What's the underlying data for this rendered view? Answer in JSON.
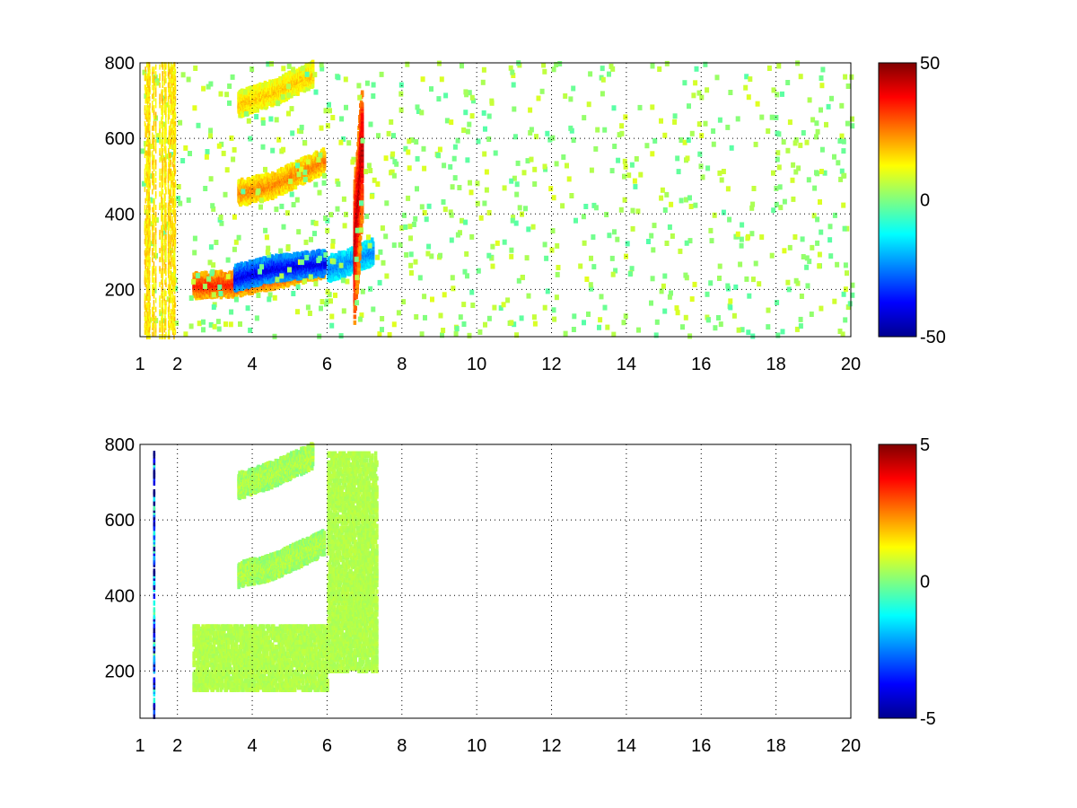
{
  "chart_data": [
    {
      "type": "heatmap",
      "title": "",
      "xlabel": "",
      "ylabel": "",
      "xlim": [
        1,
        20
      ],
      "ylim": [
        75,
        800
      ],
      "xticks": [
        1,
        2,
        4,
        6,
        8,
        10,
        12,
        14,
        16,
        18,
        20
      ],
      "xtick_labels": [
        "1",
        "2",
        "4",
        "6",
        "8",
        "10",
        "12",
        "14",
        "16",
        "18",
        "20"
      ],
      "yticks": [
        200,
        400,
        600,
        800
      ],
      "ytick_labels": [
        "200",
        "400",
        "600",
        "800"
      ],
      "grid": true,
      "colormap": "jet",
      "clim": [
        -50,
        50
      ],
      "colorbar_ticks": [
        -50,
        0,
        50
      ],
      "colorbar_labels": [
        "-50",
        "0",
        "50"
      ],
      "features": [
        {
          "kind": "band",
          "x": [
            2.4,
            3.5,
            5.0,
            5.9
          ],
          "y": [
            210,
            215,
            245,
            265
          ],
          "value": 35
        },
        {
          "kind": "band",
          "x": [
            3.5,
            4.5,
            5.9
          ],
          "y": [
            230,
            255,
            270
          ],
          "value": -40
        },
        {
          "kind": "band",
          "x": [
            6.0,
            6.5,
            7.2
          ],
          "y": [
            255,
            270,
            300
          ],
          "value": -25
        },
        {
          "kind": "band",
          "x": [
            6.7,
            6.8,
            6.9
          ],
          "y": [
            300,
            420,
            570
          ],
          "value": 45
        },
        {
          "kind": "band",
          "x": [
            3.6,
            4.5,
            5.9
          ],
          "y": [
            455,
            475,
            540
          ],
          "value": 25
        },
        {
          "kind": "band",
          "x": [
            3.6,
            4.5,
            5.6
          ],
          "y": [
            690,
            720,
            770
          ],
          "value": 18
        }
      ]
    },
    {
      "type": "heatmap",
      "title": "",
      "xlabel": "",
      "ylabel": "",
      "xlim": [
        1,
        20
      ],
      "ylim": [
        75,
        800
      ],
      "xticks": [
        1,
        2,
        4,
        6,
        8,
        10,
        12,
        14,
        16,
        18,
        20
      ],
      "xtick_labels": [
        "1",
        "2",
        "4",
        "6",
        "8",
        "10",
        "12",
        "14",
        "16",
        "18",
        "20"
      ],
      "yticks": [
        200,
        400,
        600,
        800
      ],
      "ytick_labels": [
        "200",
        "400",
        "600",
        "800"
      ],
      "grid": true,
      "colormap": "jet",
      "clim": [
        -5,
        5
      ],
      "colorbar_ticks": [
        -5,
        0,
        5
      ],
      "colorbar_labels": [
        "-5",
        "0",
        "5"
      ],
      "features": [
        {
          "kind": "region",
          "x": [
            2.4,
            6.0
          ],
          "y": [
            150,
            320
          ],
          "value": 0.5
        },
        {
          "kind": "region",
          "x": [
            6.0,
            7.3
          ],
          "y": [
            200,
            780
          ],
          "value": 0.5
        },
        {
          "kind": "band",
          "x": [
            3.6,
            4.5,
            5.9
          ],
          "y": [
            455,
            475,
            540
          ],
          "value": 0.5
        },
        {
          "kind": "band",
          "x": [
            3.6,
            4.5,
            5.6
          ],
          "y": [
            690,
            720,
            770
          ],
          "value": 0.5
        },
        {
          "kind": "stripe",
          "x": [
            1.35,
            1.4
          ],
          "y": [
            80,
            790
          ],
          "value": -4
        }
      ]
    }
  ]
}
